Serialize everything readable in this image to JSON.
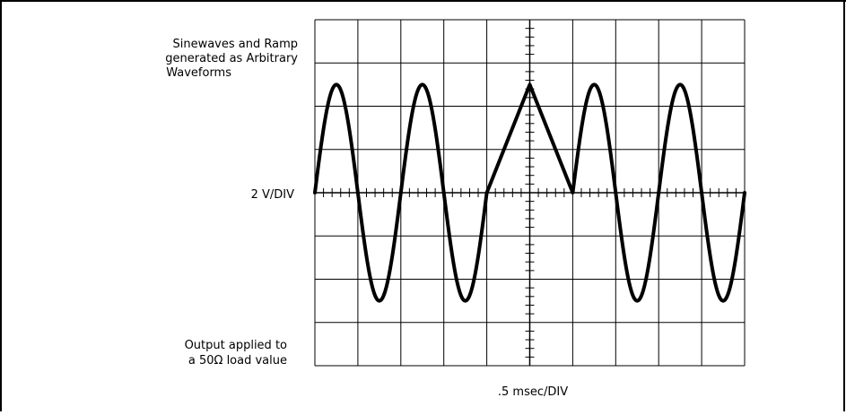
{
  "figure": {
    "annotation_top": [
      "Sinewaves and Ramp",
      "generated as Arbitrary",
      "Waveforms"
    ],
    "vertical_scale_label": "2 V/DIV",
    "annotation_bottom": [
      "Output applied to",
      "a 50Ω load value"
    ],
    "horizontal_scale_label": ".5 msec/DIV"
  },
  "chart_data": {
    "type": "line",
    "title": "",
    "xlabel": ".5 msec/DIV",
    "ylabel": "2 V/DIV",
    "grid": true,
    "divisions": {
      "x": 10,
      "y": 8
    },
    "x_units": "divisions",
    "y_units": "divisions",
    "xlim": [
      -5,
      5
    ],
    "ylim": [
      -4,
      4
    ],
    "series": [
      {
        "segments": [
          {
            "kind": "sine",
            "x_start": -5.0,
            "x_end": -1.0,
            "amplitude": 2.5,
            "period": 2.0
          },
          {
            "kind": "ramp",
            "points": [
              [
                -1.0,
                0.0
              ],
              [
                0.0,
                2.5
              ],
              [
                1.0,
                0.0
              ]
            ]
          },
          {
            "kind": "sine",
            "x_start": 1.0,
            "x_end": 5.0,
            "amplitude": 2.5,
            "period": 2.0
          }
        ]
      }
    ],
    "colors": {
      "trace": "#000000",
      "grid": "#000000",
      "background": "#ffffff"
    }
  }
}
